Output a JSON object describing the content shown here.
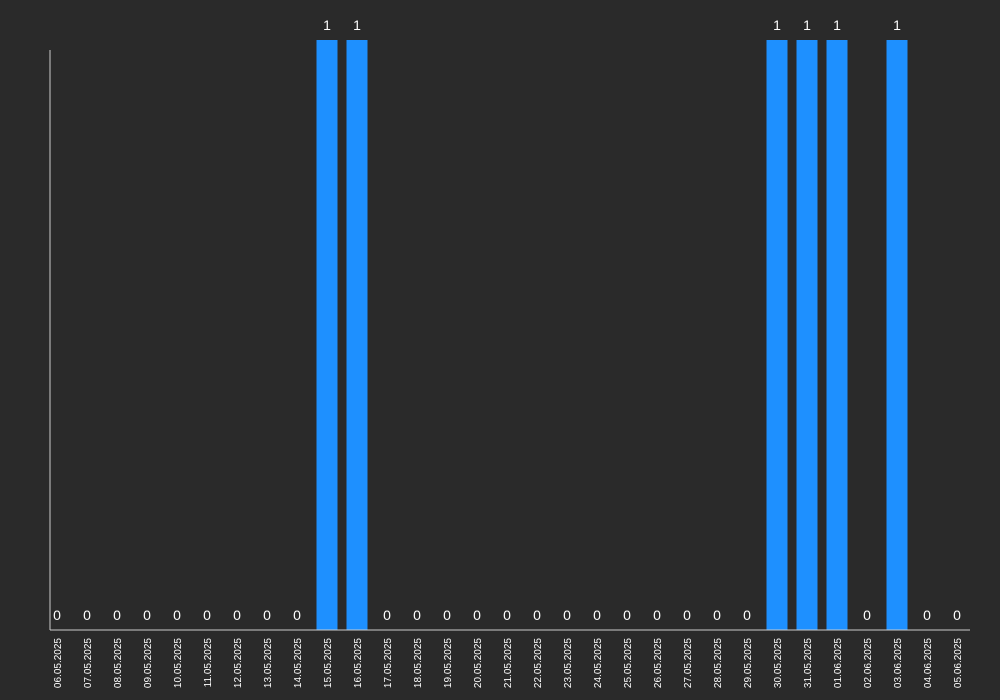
{
  "chart_data": {
    "type": "bar",
    "categories": [
      "06.05.2025",
      "07.05.2025",
      "08.05.2025",
      "09.05.2025",
      "10.05.2025",
      "11.05.2025",
      "12.05.2025",
      "13.05.2025",
      "14.05.2025",
      "15.05.2025",
      "16.05.2025",
      "17.05.2025",
      "18.05.2025",
      "19.05.2025",
      "20.05.2025",
      "21.05.2025",
      "22.05.2025",
      "23.05.2025",
      "24.05.2025",
      "25.05.2025",
      "26.05.2025",
      "27.05.2025",
      "28.05.2025",
      "29.05.2025",
      "30.05.2025",
      "31.05.2025",
      "01.06.2025",
      "02.06.2025",
      "03.06.2025",
      "04.06.2025",
      "05.06.2025"
    ],
    "values": [
      0,
      0,
      0,
      0,
      0,
      0,
      0,
      0,
      0,
      1,
      1,
      0,
      0,
      0,
      0,
      0,
      0,
      0,
      0,
      0,
      0,
      0,
      0,
      0,
      1,
      1,
      1,
      0,
      1,
      0,
      0
    ],
    "ylim": [
      0,
      1
    ],
    "grid": false,
    "legend": "none",
    "colors": {
      "bar": "#1e90ff",
      "background": "#2a2a2a",
      "axis": "#cccccc",
      "text": "#ffffff"
    }
  }
}
